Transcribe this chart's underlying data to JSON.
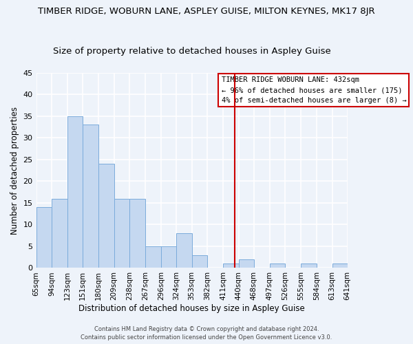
{
  "title_line1": "TIMBER RIDGE, WOBURN LANE, ASPLEY GUISE, MILTON KEYNES, MK17 8JR",
  "title_line2": "Size of property relative to detached houses in Aspley Guise",
  "xlabel": "Distribution of detached houses by size in Aspley Guise",
  "ylabel": "Number of detached properties",
  "bar_values": [
    14,
    16,
    35,
    33,
    24,
    16,
    16,
    5,
    5,
    8,
    3,
    0,
    1,
    2,
    0,
    1,
    0,
    1,
    0,
    1
  ],
  "bar_labels": [
    "65sqm",
    "94sqm",
    "123sqm",
    "151sqm",
    "180sqm",
    "209sqm",
    "238sqm",
    "267sqm",
    "296sqm",
    "324sqm",
    "353sqm",
    "382sqm",
    "411sqm",
    "440sqm",
    "468sqm",
    "497sqm",
    "526sqm",
    "555sqm",
    "584sqm",
    "613sqm",
    "641sqm"
  ],
  "bar_color": "#c5d8f0",
  "bar_edge_color": "#7aabdb",
  "bg_color": "#eef3fa",
  "grid_color": "#ffffff",
  "vline_x": 432,
  "vline_color": "#cc0000",
  "legend_title": "TIMBER RIDGE WOBURN LANE: 432sqm",
  "legend_line2": "← 96% of detached houses are smaller (175)",
  "legend_line3": "4% of semi-detached houses are larger (8) →",
  "legend_box_color": "#cc0000",
  "ylim": [
    0,
    45
  ],
  "yticks": [
    0,
    5,
    10,
    15,
    20,
    25,
    30,
    35,
    40,
    45
  ],
  "bin_edges": [
    65,
    94,
    123,
    151,
    180,
    209,
    238,
    267,
    296,
    324,
    353,
    382,
    411,
    440,
    468,
    497,
    526,
    555,
    584,
    613,
    641
  ],
  "title_fontsize": 9.5,
  "subtitle_fontsize": 9.5,
  "xlabel_fontsize": 8.5,
  "ylabel_fontsize": 8.5,
  "tick_fontsize": 7.5,
  "footnote": "Contains HM Land Registry data © Crown copyright and database right 2024.\nContains public sector information licensed under the Open Government Licence v3.0."
}
